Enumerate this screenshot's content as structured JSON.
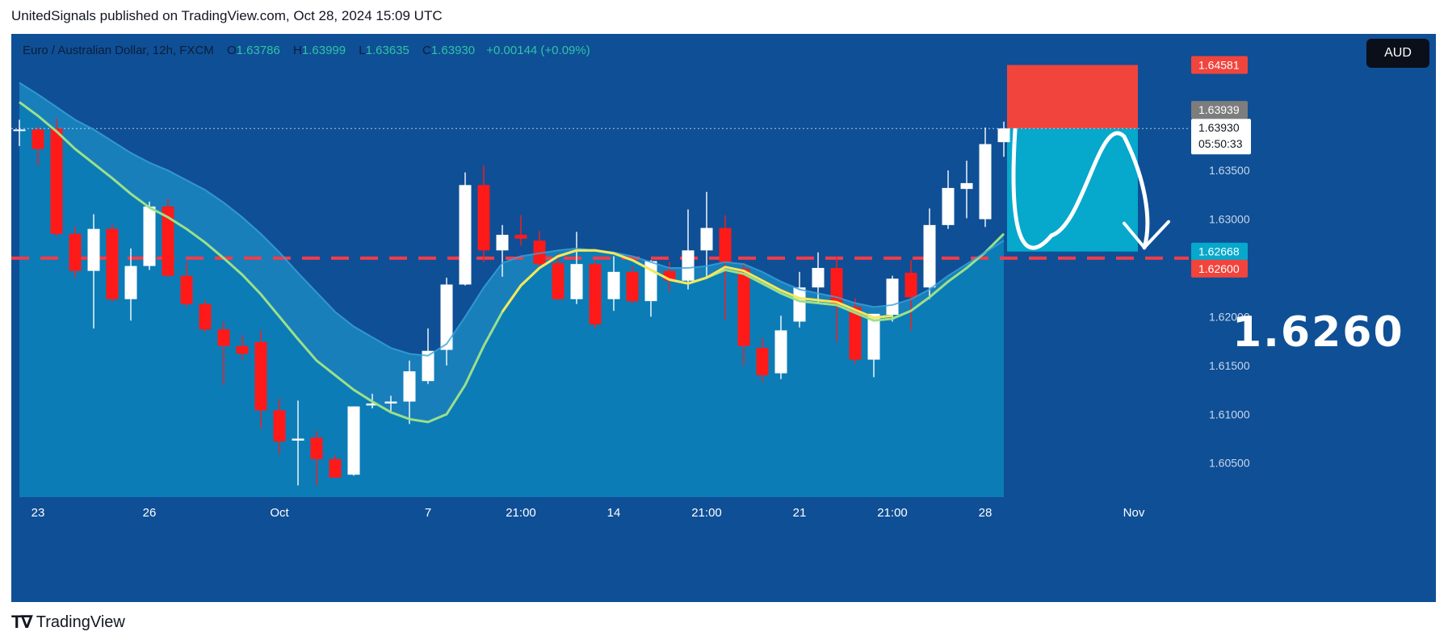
{
  "publish_line": "UnitedSignals published on TradingView.com, Oct 28, 2024 15:09 UTC",
  "legend": {
    "symbol": "Euro / Australian Dollar, 12h, FXCM",
    "o_label": "O",
    "o_value": "1.63786",
    "h_label": "H",
    "h_value": "1.63999",
    "l_label": "L",
    "l_value": "1.63635",
    "c_label": "C",
    "c_value": "1.63930",
    "change": "+0.00144 (+0.09%)"
  },
  "currency_button": "AUD",
  "target_label": "1.6260",
  "footer_brand": "TradingView",
  "colors": {
    "background": "#0f4f96",
    "band_fill": "#1a87c2",
    "lower_fill": "#0b7cb6",
    "bull": "#ffffff",
    "bear": "#ff1a1a",
    "ma_yellow": "#f4e85a",
    "ma_green": "#9be08a",
    "stop_zone": "#f1443c",
    "target_zone": "#06a8cc",
    "dashed_line": "#f23c4a"
  },
  "chart_data": {
    "type": "candlestick",
    "ylim": [
      1.6015,
      1.649
    ],
    "y_ticks": [
      "1.60500",
      "1.61000",
      "1.61500",
      "1.62000",
      "1.62600",
      "1.63000",
      "1.63500"
    ],
    "x_ticks": [
      {
        "index": 1,
        "label": "23"
      },
      {
        "index": 7,
        "label": "26"
      },
      {
        "index": 14,
        "label": "Oct"
      },
      {
        "index": 22,
        "label": "7"
      },
      {
        "index": 27,
        "label": "21:00"
      },
      {
        "index": 32,
        "label": "14"
      },
      {
        "index": 37,
        "label": "21:00"
      },
      {
        "index": 42,
        "label": "21"
      },
      {
        "index": 47,
        "label": "21:00"
      },
      {
        "index": 52,
        "label": "28"
      },
      {
        "index": 60,
        "label": "Nov"
      }
    ],
    "price_labels": {
      "stop": "1.64581",
      "prev_close": "1.63939",
      "last": "1.63930",
      "countdown": "05:50:33",
      "entry_zone_bottom": "1.62668",
      "target": "1.62600"
    },
    "candles": [
      {
        "o": 1.6391,
        "h": 1.6402,
        "l": 1.6375,
        "c": 1.6392
      },
      {
        "o": 1.6392,
        "h": 1.6395,
        "l": 1.6355,
        "c": 1.6372
      },
      {
        "o": 1.6393,
        "h": 1.6403,
        "l": 1.6282,
        "c": 1.6285
      },
      {
        "o": 1.6285,
        "h": 1.6292,
        "l": 1.624,
        "c": 1.6247
      },
      {
        "o": 1.6247,
        "h": 1.6305,
        "l": 1.6188,
        "c": 1.629
      },
      {
        "o": 1.629,
        "h": 1.6295,
        "l": 1.6215,
        "c": 1.6218
      },
      {
        "o": 1.6218,
        "h": 1.627,
        "l": 1.6196,
        "c": 1.6252
      },
      {
        "o": 1.6252,
        "h": 1.6318,
        "l": 1.6248,
        "c": 1.6313
      },
      {
        "o": 1.6313,
        "h": 1.6321,
        "l": 1.624,
        "c": 1.6242
      },
      {
        "o": 1.6242,
        "h": 1.6256,
        "l": 1.621,
        "c": 1.6213
      },
      {
        "o": 1.6213,
        "h": 1.6217,
        "l": 1.6184,
        "c": 1.6187
      },
      {
        "o": 1.6187,
        "h": 1.6195,
        "l": 1.613,
        "c": 1.617
      },
      {
        "o": 1.617,
        "h": 1.6181,
        "l": 1.6156,
        "c": 1.6162
      },
      {
        "o": 1.6174,
        "h": 1.6186,
        "l": 1.6085,
        "c": 1.6104
      },
      {
        "o": 1.6104,
        "h": 1.6116,
        "l": 1.6059,
        "c": 1.6072
      },
      {
        "o": 1.6073,
        "h": 1.6114,
        "l": 1.6027,
        "c": 1.6075
      },
      {
        "o": 1.6076,
        "h": 1.6083,
        "l": 1.6027,
        "c": 1.6054
      },
      {
        "o": 1.6054,
        "h": 1.6058,
        "l": 1.6037,
        "c": 1.6035
      },
      {
        "o": 1.6038,
        "h": 1.6108,
        "l": 1.6037,
        "c": 1.6108
      },
      {
        "o": 1.6109,
        "h": 1.6121,
        "l": 1.6106,
        "c": 1.6111
      },
      {
        "o": 1.6111,
        "h": 1.6119,
        "l": 1.6103,
        "c": 1.6113
      },
      {
        "o": 1.6113,
        "h": 1.6155,
        "l": 1.609,
        "c": 1.6144
      },
      {
        "o": 1.6134,
        "h": 1.6188,
        "l": 1.6131,
        "c": 1.6165
      },
      {
        "o": 1.6166,
        "h": 1.624,
        "l": 1.615,
        "c": 1.6233
      },
      {
        "o": 1.6233,
        "h": 1.6348,
        "l": 1.6232,
        "c": 1.6335
      },
      {
        "o": 1.6335,
        "h": 1.6355,
        "l": 1.6256,
        "c": 1.6268
      },
      {
        "o": 1.6268,
        "h": 1.6294,
        "l": 1.6241,
        "c": 1.6284
      },
      {
        "o": 1.6284,
        "h": 1.6304,
        "l": 1.6273,
        "c": 1.628
      },
      {
        "o": 1.6278,
        "h": 1.6288,
        "l": 1.6252,
        "c": 1.6254
      },
      {
        "o": 1.6255,
        "h": 1.6265,
        "l": 1.6217,
        "c": 1.6218
      },
      {
        "o": 1.6218,
        "h": 1.6287,
        "l": 1.6213,
        "c": 1.6254
      },
      {
        "o": 1.6254,
        "h": 1.6257,
        "l": 1.6188,
        "c": 1.6192
      },
      {
        "o": 1.6218,
        "h": 1.6262,
        "l": 1.6206,
        "c": 1.6246
      },
      {
        "o": 1.6246,
        "h": 1.6252,
        "l": 1.6213,
        "c": 1.6216
      },
      {
        "o": 1.6216,
        "h": 1.6258,
        "l": 1.62,
        "c": 1.6257
      },
      {
        "o": 1.6247,
        "h": 1.6256,
        "l": 1.6226,
        "c": 1.6237
      },
      {
        "o": 1.6237,
        "h": 1.631,
        "l": 1.6228,
        "c": 1.6268
      },
      {
        "o": 1.6268,
        "h": 1.6328,
        "l": 1.624,
        "c": 1.6291
      },
      {
        "o": 1.6291,
        "h": 1.6304,
        "l": 1.6197,
        "c": 1.6256
      },
      {
        "o": 1.6249,
        "h": 1.6255,
        "l": 1.615,
        "c": 1.617
      },
      {
        "o": 1.6168,
        "h": 1.6178,
        "l": 1.6133,
        "c": 1.614
      },
      {
        "o": 1.6142,
        "h": 1.6201,
        "l": 1.6136,
        "c": 1.6186
      },
      {
        "o": 1.6195,
        "h": 1.6246,
        "l": 1.6189,
        "c": 1.623
      },
      {
        "o": 1.623,
        "h": 1.6266,
        "l": 1.6214,
        "c": 1.625
      },
      {
        "o": 1.625,
        "h": 1.6262,
        "l": 1.6174,
        "c": 1.6211
      },
      {
        "o": 1.621,
        "h": 1.6219,
        "l": 1.6152,
        "c": 1.6156
      },
      {
        "o": 1.6156,
        "h": 1.6202,
        "l": 1.6138,
        "c": 1.6203
      },
      {
        "o": 1.6202,
        "h": 1.6242,
        "l": 1.6195,
        "c": 1.6239
      },
      {
        "o": 1.6245,
        "h": 1.6258,
        "l": 1.6186,
        "c": 1.622
      },
      {
        "o": 1.623,
        "h": 1.6311,
        "l": 1.6218,
        "c": 1.6294
      },
      {
        "o": 1.6294,
        "h": 1.635,
        "l": 1.629,
        "c": 1.6332
      },
      {
        "o": 1.6331,
        "h": 1.636,
        "l": 1.6301,
        "c": 1.6337
      },
      {
        "o": 1.63,
        "h": 1.6394,
        "l": 1.6292,
        "c": 1.6377
      },
      {
        "o": 1.6379,
        "h": 1.64,
        "l": 1.6364,
        "c": 1.6393
      }
    ],
    "ma_green": [
      1.642,
      1.6406,
      1.639,
      1.6372,
      1.6357,
      1.6342,
      1.6326,
      1.6312,
      1.6302,
      1.629,
      1.6276,
      1.626,
      1.6243,
      1.6223,
      1.62,
      1.6177,
      1.6155,
      1.614,
      1.6125,
      1.6113,
      1.6102,
      1.6095,
      1.6092,
      1.61,
      1.613,
      1.617,
      1.6205,
      1.6232,
      1.625,
      1.6262,
      1.6268,
      1.6268,
      1.6265,
      1.6258,
      1.6248,
      1.6238,
      1.6234,
      1.624,
      1.6248,
      1.6244,
      1.6234,
      1.6224,
      1.6216,
      1.6214,
      1.6212,
      1.6204,
      1.6196,
      1.6198,
      1.6206,
      1.622,
      1.6236,
      1.625,
      1.6266,
      1.6285
    ],
    "ma_yellow_start": 26,
    "band_upper": [
      1.644,
      1.6428,
      1.6415,
      1.6402,
      1.6392,
      1.638,
      1.6368,
      1.6358,
      1.635,
      1.634,
      1.633,
      1.6317,
      1.6302,
      1.6285,
      1.6266,
      1.6245,
      1.6225,
      1.6205,
      1.619,
      1.6179,
      1.6168,
      1.6162,
      1.616,
      1.6172,
      1.62,
      1.623,
      1.6255,
      1.6262,
      1.6265,
      1.6268,
      1.627,
      1.6268,
      1.6266,
      1.6262,
      1.6256,
      1.625,
      1.625,
      1.6252,
      1.6256,
      1.6254,
      1.6246,
      1.6236,
      1.6228,
      1.6224,
      1.622,
      1.6214,
      1.621,
      1.6212,
      1.6218,
      1.6228,
      1.6242,
      1.6254,
      1.6266,
      1.6278
    ]
  }
}
